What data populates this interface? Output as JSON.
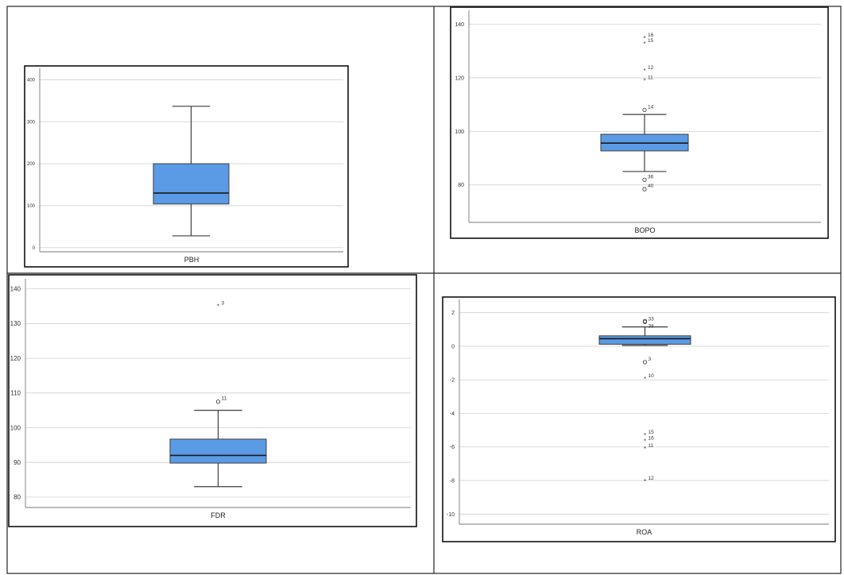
{
  "colors": {
    "box_fill": "#5B9BE6",
    "box_edge": "#3d3d3d",
    "grid": "#d0d0d0",
    "frame": "#111111",
    "table_line": "#222222"
  },
  "chart_data": [
    {
      "type": "boxplot",
      "xlabel": "PBH",
      "ylim": [
        -10,
        420
      ],
      "yticks": [
        0,
        100,
        200,
        300,
        400
      ],
      "grid": true,
      "box": {
        "whisker_low": 28,
        "q1": 104,
        "median": 130,
        "q3": 200,
        "whisker_high": 337
      },
      "outliers": []
    },
    {
      "type": "boxplot",
      "xlabel": "BOPO",
      "ylim": [
        66,
        144
      ],
      "yticks": [
        80,
        100,
        120,
        140
      ],
      "grid": true,
      "box": {
        "whisker_low": 85,
        "q1": 92.7,
        "median": 95.6,
        "q3": 98.9,
        "whisker_high": 106.3
      },
      "outliers": [
        {
          "value": 134.8,
          "label": "16",
          "marker": "star"
        },
        {
          "value": 132.8,
          "label": "15",
          "marker": "star"
        },
        {
          "value": 122.6,
          "label": "12",
          "marker": "star"
        },
        {
          "value": 118.9,
          "label": "11",
          "marker": "star"
        },
        {
          "value": 108,
          "label": "14",
          "marker": "circle"
        },
        {
          "value": 81.9,
          "label": "36",
          "marker": "circle"
        },
        {
          "value": 78.4,
          "label": "40",
          "marker": "circle"
        }
      ]
    },
    {
      "type": "boxplot",
      "xlabel": "FDR",
      "ylim": [
        77,
        142
      ],
      "yticks": [
        80,
        90,
        100,
        110,
        120,
        130,
        140
      ],
      "grid": true,
      "box": {
        "whisker_low": 83,
        "q1": 89.8,
        "median": 92,
        "q3": 96.7,
        "whisker_high": 105
      },
      "outliers": [
        {
          "value": 135,
          "label": "3",
          "marker": "star"
        },
        {
          "value": 107.5,
          "label": "11",
          "marker": "circle"
        }
      ]
    },
    {
      "type": "boxplot",
      "xlabel": "ROA",
      "ylim": [
        -10.6,
        2.6
      ],
      "yticks": [
        2,
        0,
        -2,
        -4,
        -6,
        -8,
        -10
      ],
      "grid": true,
      "box": {
        "whisker_low": 0.05,
        "q1": 0.12,
        "median": 0.45,
        "q3": 0.62,
        "whisker_high": 1.15
      },
      "outliers": [
        {
          "value": 1.45,
          "label": "33",
          "marker": "circle"
        },
        {
          "value": 1.5,
          "label": "",
          "marker": "circle"
        },
        {
          "value": -0.95,
          "label": "3",
          "marker": "circle"
        },
        {
          "value": -1.95,
          "label": "10",
          "marker": "star"
        },
        {
          "value": -5.3,
          "label": "15",
          "marker": "star"
        },
        {
          "value": -5.65,
          "label": "16",
          "marker": "star"
        },
        {
          "value": -6.1,
          "label": "11",
          "marker": "star"
        },
        {
          "value": -8.05,
          "label": "12",
          "marker": "star"
        }
      ]
    }
  ],
  "extra_labels": {
    "roa_label_38": "38"
  }
}
